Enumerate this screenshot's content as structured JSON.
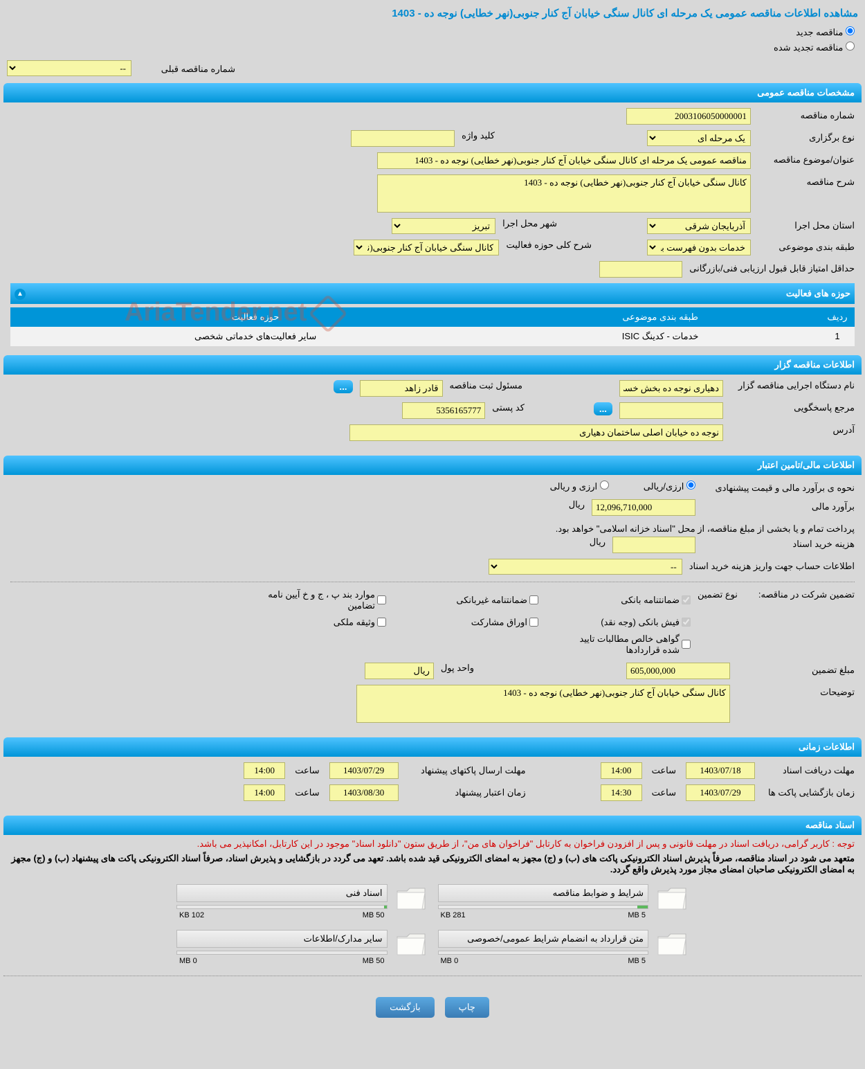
{
  "pageTitle": "مشاهده اطلاعات مناقصه عمومی یک مرحله ای کانال سنگی خیابان آج کنار جنوبی(نهر خطایی) نوجه ده - 1403",
  "radios": {
    "new": "مناقصه جدید",
    "renewed": "مناقصه تجدید شده"
  },
  "prevNumber": {
    "label": "شماره مناقصه قبلی",
    "value": "--"
  },
  "sec1": {
    "header": "مشخصات مناقصه عمومی",
    "tenderNumLabel": "شماره مناقصه",
    "tenderNum": "2003106050000001",
    "typeLabel": "نوع برگزاری",
    "typeValue": "یک مرحله ای",
    "keywordLabel": "کلید واژه",
    "keyword": "",
    "titleLabel": "عنوان/موضوع مناقصه",
    "titleValue": "مناقصه عمومی یک مرحله ای کانال سنگی خیابان آج کنار جنوبی(نهر خطایی) نوجه ده - 1403",
    "descLabel": "شرح مناقصه",
    "descValue": "کانال سنگی خیابان آج کنار جنوبی(نهر خطایی) نوجه ده - 1403",
    "provLabel": "استان محل اجرا",
    "provValue": "آذربایجان شرقی",
    "cityLabel": "شهر محل اجرا",
    "cityValue": "تبریز",
    "catLabel": "طبقه بندی موضوعی",
    "catValue": "خدمات بدون فهرست بها",
    "scopeLabel": "شرح کلی حوزه فعالیت",
    "scopeValue": "کانال سنگی خیابان آج کنار جنوبی(نهر خطایی) نوجه",
    "minScoreLabel": "حداقل امتیاز قابل قبول ارزیابی فنی/بازرگانی",
    "minScore": ""
  },
  "activity": {
    "header": "حوزه های فعالیت",
    "col1": "ردیف",
    "col2": "طبقه بندی موضوعی",
    "col3": "حوزه فعالیت",
    "row1": {
      "num": "1",
      "cat": "خدمات - کدینگ ISIC",
      "field": "سایر فعالیت‌های خدماتی شخصی"
    }
  },
  "sec2": {
    "header": "اطلاعات مناقصه گزار",
    "orgLabel": "نام دستگاه اجرایی مناقصه گزار",
    "orgValue": "دهیاری نوجه ده بخش خسر",
    "regLabel": "مسئول ثبت مناقصه",
    "regValue": "قادر زاهد",
    "respLabel": "مرجع پاسخگویی",
    "respValue": "",
    "postLabel": "کد پستی",
    "postValue": "5356165777",
    "addrLabel": "آدرس",
    "addrValue": "نوجه ده خیابان اصلی ساختمان دهیاری"
  },
  "sec3": {
    "header": "اطلاعات مالی/تامین اعتبار",
    "estLabel": "نحوه ی برآورد مالی و قیمت پیشنهادی",
    "opt1": "ارزی/ریالی",
    "opt2": "ارزی و ریالی",
    "amountLabel": "برآورد مالی",
    "amountValue": "12,096,710,000",
    "currency": "ریال",
    "payNote": "پرداخت تمام و یا بخشی از مبلغ مناقصه، از محل \"اسناد خزانه اسلامی\" خواهد بود.",
    "docCostLabel": "هزینه خرید اسناد",
    "docCostUnit": "ریال",
    "accountLabel": "اطلاعات حساب جهت واریز هزینه خرید اسناد",
    "accountValue": "--"
  },
  "guarantee": {
    "typeLabel": "تضمین شرکت در مناقصه:",
    "typeLabel2": "نوع تضمین",
    "cb1": "ضمانتنامه بانکی",
    "cb2": "ضمانتنامه غیربانکی",
    "cb3": "موارد بند پ ، ج و خ آیین نامه تضامین",
    "cb4": "فیش بانکی (وجه نقد)",
    "cb5": "اوراق مشارکت",
    "cb6": "وثیقه ملکی",
    "cb7": "گواهی خالص مطالبات تایید شده قراردادها",
    "amountLabel": "مبلغ تضمین",
    "amountValue": "605,000,000",
    "unitLabel": "واحد پول",
    "unitValue": "ریال",
    "noteLabel": "توضیحات",
    "noteValue": "کانال سنگی خیابان آج کنار جنوبی(نهر خطایی) نوجه ده - 1403"
  },
  "sec4": {
    "header": "اطلاعات زمانی",
    "deadline1Label": "مهلت دریافت اسناد",
    "deadline1Date": "1403/07/18",
    "deadline1Time": "14:00",
    "sendLabel": "مهلت ارسال پاکتهای پیشنهاد",
    "sendDate": "1403/07/29",
    "sendTime": "14:00",
    "openLabel": "زمان بازگشایی پاکت ها",
    "openDate": "1403/07/29",
    "openTime": "14:30",
    "validLabel": "زمان اعتبار پیشنهاد",
    "validDate": "1403/08/30",
    "validTime": "14:00",
    "timeLabel": "ساعت"
  },
  "sec5": {
    "header": "اسناد مناقصه",
    "note1": "توجه : کاربر گرامی، دریافت اسناد در مهلت قانونی و پس از افزودن فراخوان به کارتابل \"فراخوان های من\"، از طریق ستون \"دانلود اسناد\" موجود در این کارتابل، امکانپذیر می باشد.",
    "note2": "متعهد می شود در اسناد مناقصه، صرفاً پذیرش اسناد الکترونیکی پاکت های (ب) و (ج) مجهز به امضای الکترونیکی قید شده باشد. تعهد می گردد در بازگشایی و پذیرش اسناد، صرفاً اسناد الکترونیکی پاکت های پیشنهاد (ب) و (ج) مجهز به امضای الکترونیکی صاحبان امضای مجاز مورد پذیرش واقع گردد."
  },
  "docs": [
    {
      "title": "شرایط و ضوابط مناقصه",
      "used": "281 KB",
      "cap": "5 MB",
      "pct": 5
    },
    {
      "title": "اسناد فنی",
      "used": "102 KB",
      "cap": "50 MB",
      "pct": 1
    },
    {
      "title": "متن قرارداد به انضمام شرایط عمومی/خصوصی",
      "used": "0 MB",
      "cap": "5 MB",
      "pct": 0
    },
    {
      "title": "سایر مدارک/اطلاعات",
      "used": "0 MB",
      "cap": "50 MB",
      "pct": 0
    }
  ],
  "buttons": {
    "print": "چاپ",
    "back": "بازگشت"
  },
  "watermark": "AriaTender.net"
}
